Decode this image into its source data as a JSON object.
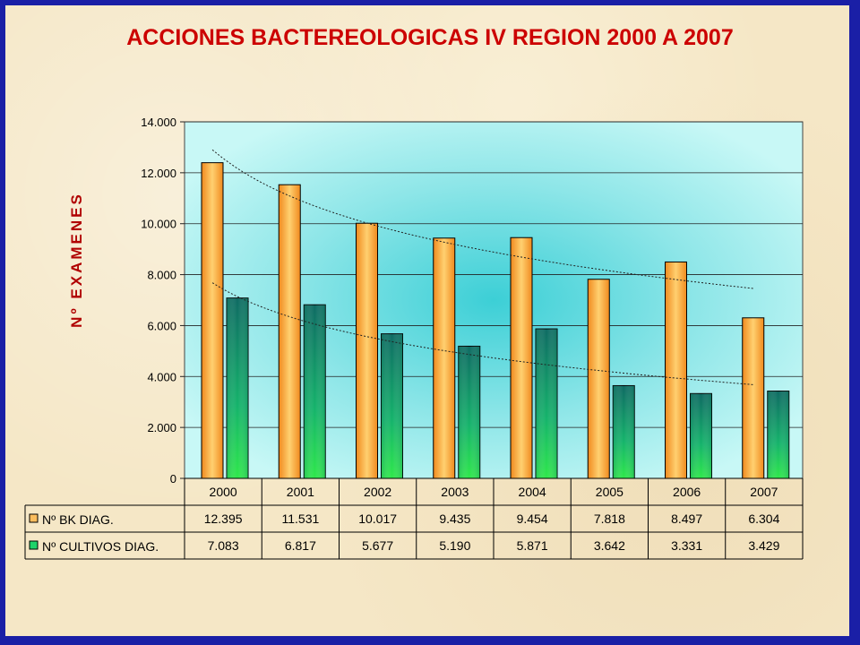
{
  "chart_data": {
    "type": "bar",
    "title": "ACCIONES BACTEREOLOGICAS  IV REGION 2000 A 2007",
    "ylabel": "Nº  EXAMENES",
    "categories": [
      "2000",
      "2001",
      "2002",
      "2003",
      "2004",
      "2005",
      "2006",
      "2007"
    ],
    "series": [
      {
        "name": "Nº BK DIAG.",
        "values": [
          12395,
          11531,
          10017,
          9435,
          9454,
          7818,
          8497,
          6304
        ],
        "labels": [
          "12.395",
          "11.531",
          "10.017",
          "9.435",
          "9.454",
          "7.818",
          "8.497",
          "6.304"
        ],
        "color": "#f7962a"
      },
      {
        "name": "Nº CULTIVOS DIAG.",
        "values": [
          7083,
          6817,
          5677,
          5190,
          5871,
          3642,
          3331,
          3429
        ],
        "labels": [
          "7.083",
          "6.817",
          "5.677",
          "5.190",
          "5.871",
          "3.642",
          "3.331",
          "3.429"
        ],
        "color": "#11b865"
      }
    ],
    "ylim": [
      0,
      14000
    ],
    "yticks": [
      0,
      2000,
      4000,
      6000,
      8000,
      10000,
      12000,
      14000
    ],
    "ytick_labels": [
      "0",
      "2.000",
      "4.000",
      "6.000",
      "8.000",
      "10.000",
      "12.000",
      "14.000"
    ],
    "trendlines": true,
    "grid": true,
    "data_table": true
  }
}
